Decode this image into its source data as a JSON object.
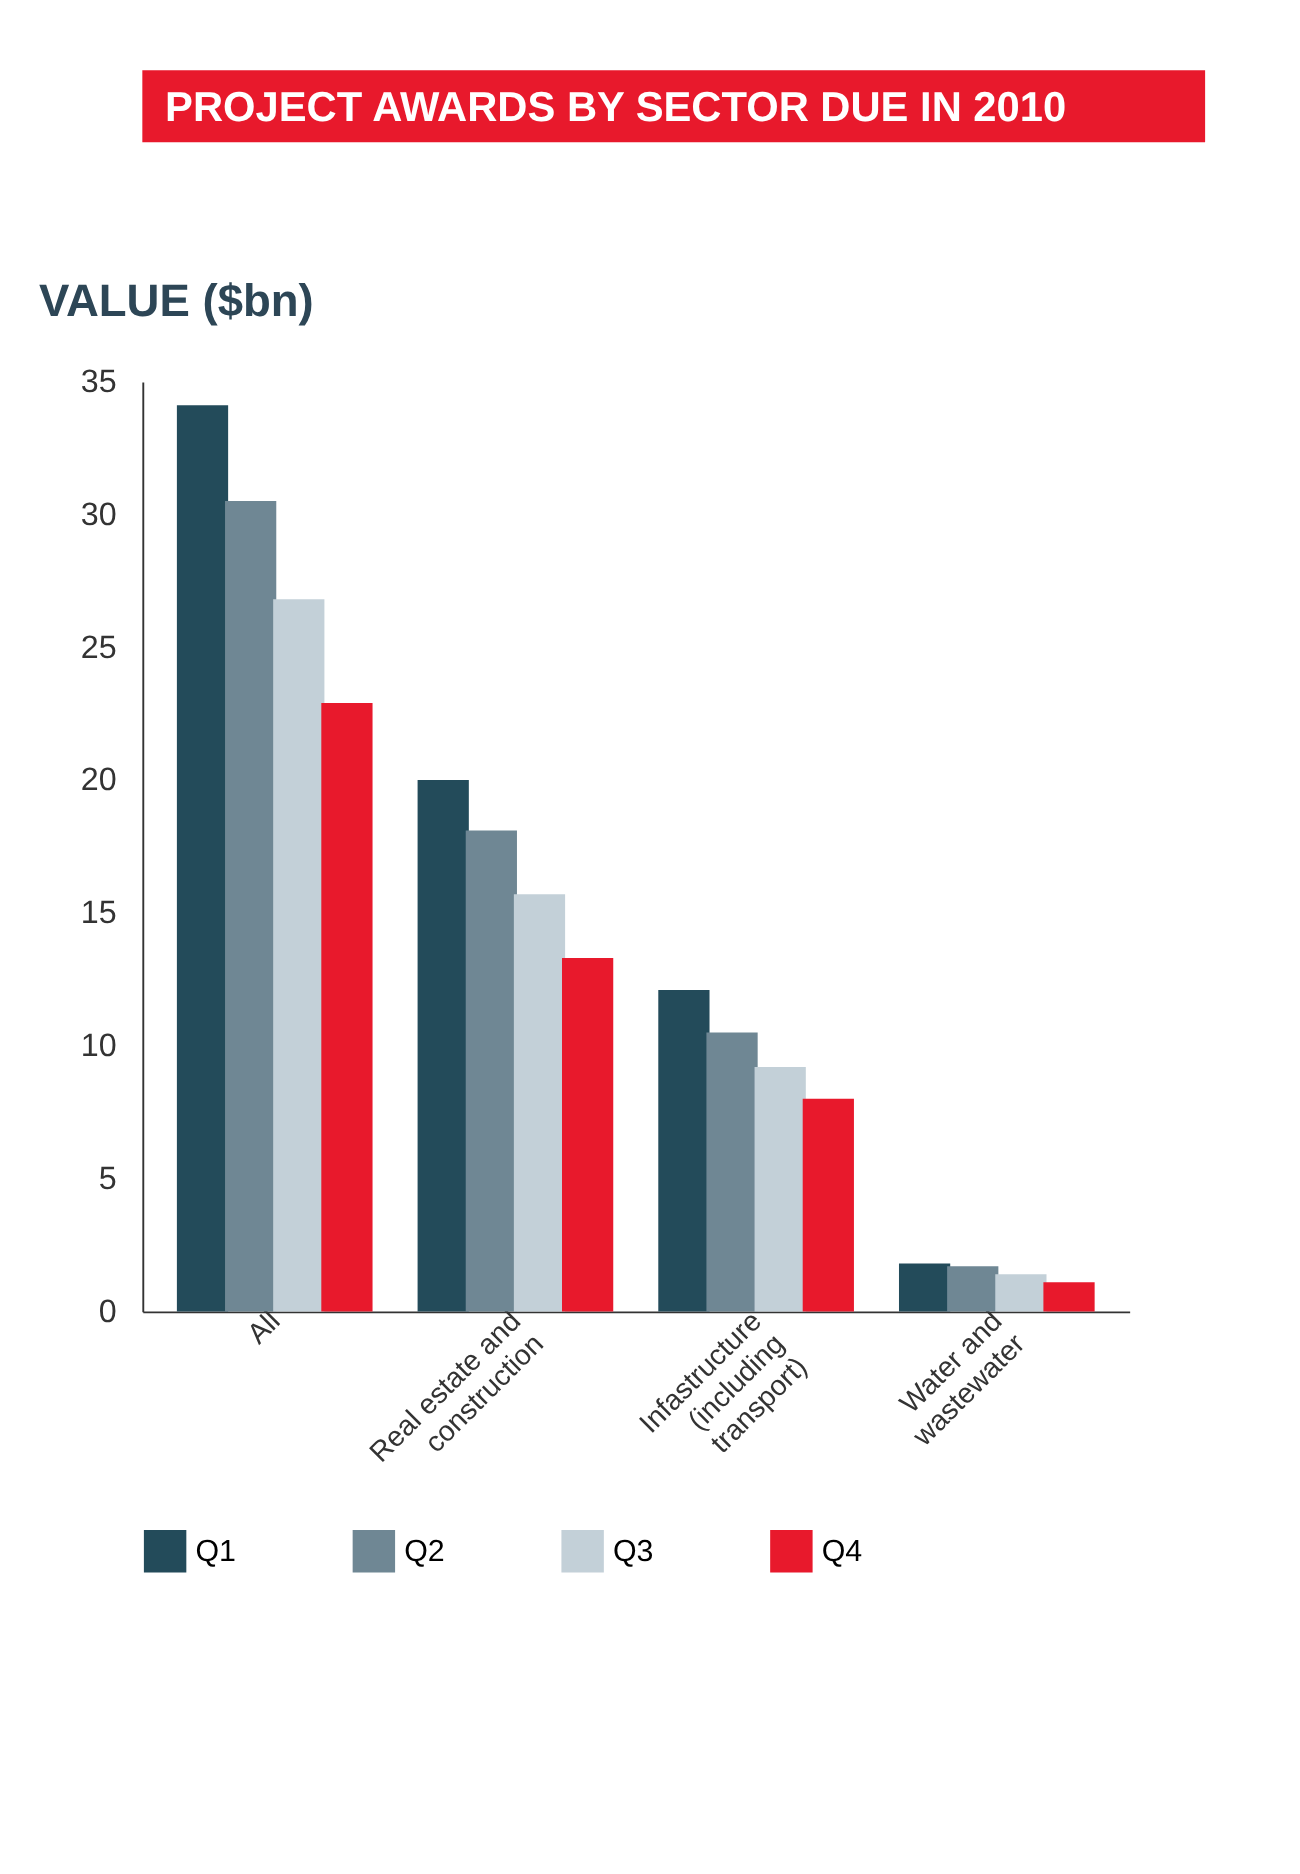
{
  "chart_data": {
    "type": "bar",
    "title": "PROJECT AWARDS BY SECTOR DUE IN 2010",
    "ylabel": "VALUE ($bn)",
    "categories": [
      "All",
      "Real estate and construction",
      "Infastructure (including transport)",
      "Water and wastewater"
    ],
    "series": [
      {
        "name": "Q1",
        "color": "#234b5a",
        "values": [
          34.1,
          20.0,
          12.1,
          1.8
        ]
      },
      {
        "name": "Q2",
        "color": "#6f8794",
        "values": [
          30.5,
          18.1,
          10.5,
          1.7
        ]
      },
      {
        "name": "Q3",
        "color": "#c3d0d8",
        "values": [
          26.8,
          15.7,
          9.2,
          1.4
        ]
      },
      {
        "name": "Q4",
        "color": "#e8192c",
        "values": [
          22.9,
          13.3,
          8.0,
          1.1
        ]
      }
    ],
    "ylim": [
      0,
      35
    ],
    "yticks": [
      0,
      5,
      10,
      15,
      20,
      25,
      30,
      35
    ],
    "grid": false,
    "legend": "bottom"
  }
}
